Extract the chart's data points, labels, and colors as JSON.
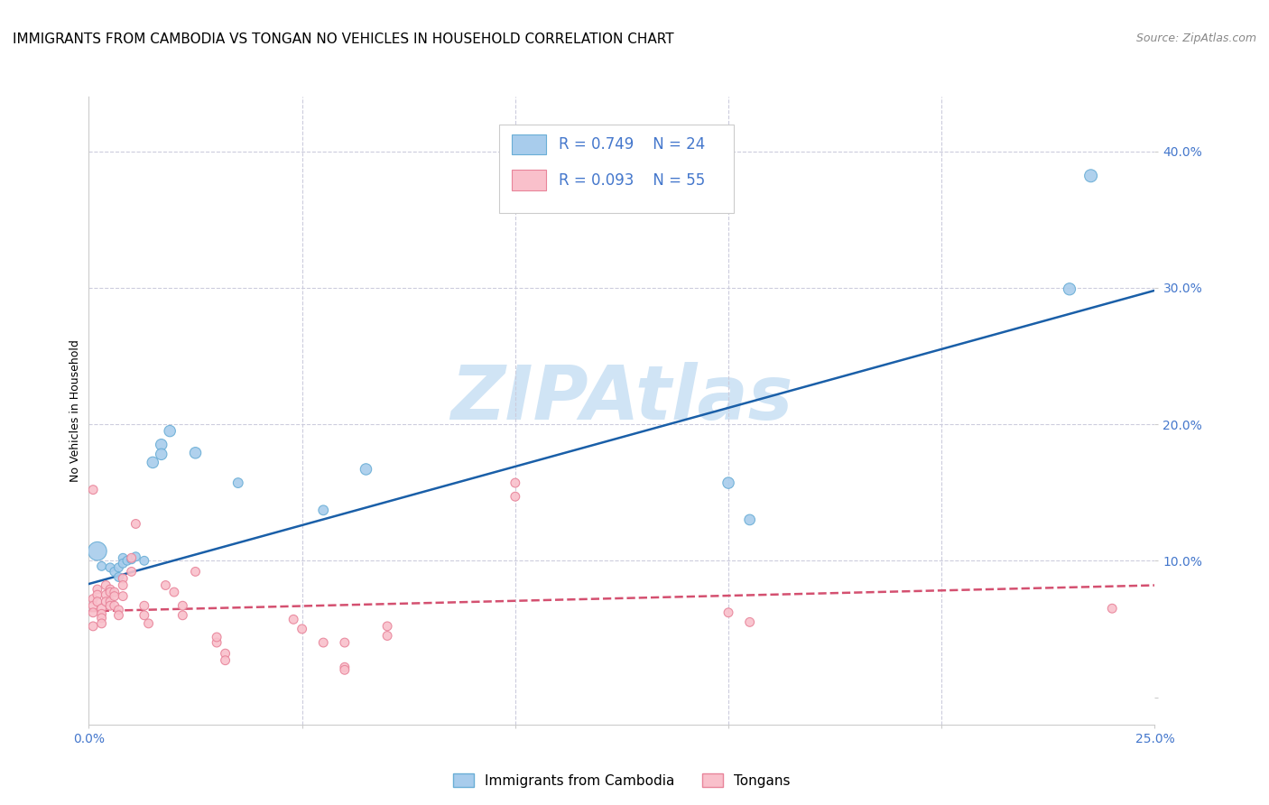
{
  "title": "IMMIGRANTS FROM CAMBODIA VS TONGAN NO VEHICLES IN HOUSEHOLD CORRELATION CHART",
  "source": "Source: ZipAtlas.com",
  "ylabel": "No Vehicles in Household",
  "watermark": "ZIPAtlas",
  "xlim": [
    0.0,
    0.25
  ],
  "ylim": [
    -0.02,
    0.44
  ],
  "xticks": [
    0.0,
    0.05,
    0.1,
    0.15,
    0.2,
    0.25
  ],
  "yticks": [
    0.0,
    0.1,
    0.2,
    0.3,
    0.4
  ],
  "ytick_labels": [
    "",
    "10.0%",
    "20.0%",
    "30.0%",
    "40.0%"
  ],
  "xtick_labels": [
    "0.0%",
    "",
    "",
    "",
    "",
    "25.0%"
  ],
  "blue_color": "#a8ccec",
  "blue_edge": "#6aaed6",
  "pink_color": "#f9c0cb",
  "pink_edge": "#e8849a",
  "trend_blue": "#1a5fa8",
  "trend_pink": "#d45070",
  "legend_R1": "R = 0.749",
  "legend_N1": "N = 24",
  "legend_R2": "R = 0.093",
  "legend_N2": "N = 55",
  "legend_label1": "Immigrants from Cambodia",
  "legend_label2": "Tongans",
  "blue_x": [
    0.002,
    0.003,
    0.005,
    0.006,
    0.007,
    0.007,
    0.008,
    0.008,
    0.009,
    0.01,
    0.011,
    0.013,
    0.015,
    0.017,
    0.017,
    0.019,
    0.025,
    0.035,
    0.055,
    0.065,
    0.15,
    0.155,
    0.23,
    0.235
  ],
  "blue_y": [
    0.107,
    0.096,
    0.095,
    0.092,
    0.095,
    0.088,
    0.102,
    0.098,
    0.1,
    0.101,
    0.103,
    0.1,
    0.172,
    0.185,
    0.178,
    0.195,
    0.179,
    0.157,
    0.137,
    0.167,
    0.157,
    0.13,
    0.299,
    0.382
  ],
  "blue_sizes": [
    220,
    50,
    50,
    50,
    50,
    50,
    50,
    50,
    50,
    50,
    50,
    50,
    80,
    80,
    80,
    80,
    80,
    60,
    60,
    80,
    80,
    70,
    90,
    100
  ],
  "pink_x": [
    0.001,
    0.001,
    0.001,
    0.001,
    0.001,
    0.002,
    0.002,
    0.002,
    0.003,
    0.003,
    0.003,
    0.003,
    0.004,
    0.004,
    0.004,
    0.005,
    0.005,
    0.005,
    0.005,
    0.006,
    0.006,
    0.006,
    0.007,
    0.007,
    0.008,
    0.008,
    0.008,
    0.01,
    0.01,
    0.011,
    0.013,
    0.013,
    0.014,
    0.018,
    0.02,
    0.022,
    0.022,
    0.025,
    0.03,
    0.03,
    0.032,
    0.032,
    0.048,
    0.05,
    0.055,
    0.06,
    0.06,
    0.06,
    0.07,
    0.07,
    0.1,
    0.1,
    0.15,
    0.155,
    0.24
  ],
  "pink_y": [
    0.152,
    0.072,
    0.067,
    0.062,
    0.052,
    0.079,
    0.075,
    0.07,
    0.065,
    0.061,
    0.058,
    0.054,
    0.082,
    0.075,
    0.07,
    0.079,
    0.077,
    0.07,
    0.067,
    0.077,
    0.074,
    0.067,
    0.064,
    0.06,
    0.087,
    0.082,
    0.074,
    0.092,
    0.102,
    0.127,
    0.067,
    0.06,
    0.054,
    0.082,
    0.077,
    0.067,
    0.06,
    0.092,
    0.04,
    0.044,
    0.032,
    0.027,
    0.057,
    0.05,
    0.04,
    0.022,
    0.02,
    0.04,
    0.052,
    0.045,
    0.157,
    0.147,
    0.062,
    0.055,
    0.065
  ],
  "pink_sizes": [
    50,
    50,
    50,
    50,
    50,
    50,
    50,
    50,
    50,
    50,
    50,
    50,
    50,
    50,
    50,
    50,
    50,
    50,
    50,
    50,
    50,
    50,
    50,
    50,
    50,
    50,
    50,
    50,
    50,
    50,
    50,
    50,
    50,
    50,
    50,
    50,
    50,
    50,
    50,
    50,
    50,
    50,
    50,
    50,
    50,
    50,
    50,
    50,
    50,
    50,
    50,
    50,
    50,
    50,
    50
  ],
  "blue_trend_x": [
    0.0,
    0.25
  ],
  "blue_trend_y": [
    0.083,
    0.298
  ],
  "pink_trend_x": [
    0.0,
    0.25
  ],
  "pink_trend_y": [
    0.063,
    0.082
  ],
  "title_fontsize": 11,
  "tick_color": "#4477cc",
  "grid_color": "#ccccdd",
  "watermark_color": "#d0e4f5",
  "watermark_fontsize": 60,
  "background_color": "#ffffff"
}
